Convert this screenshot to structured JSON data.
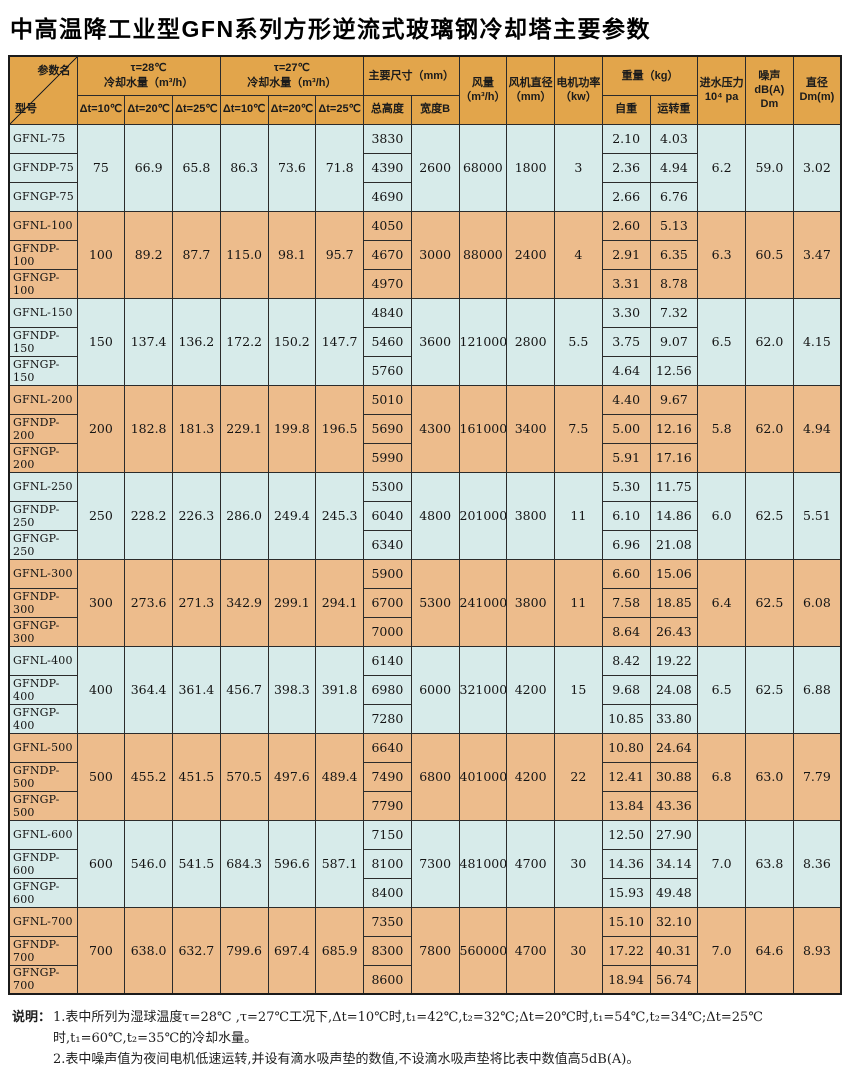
{
  "title": "中高温降工业型GFN系列方形逆流式玻璃钢冷却塔主要参数",
  "colors": {
    "header_bg": "#e2a54b",
    "row_blue": "#d7ebea",
    "row_tan": "#edbc8c",
    "border": "#2b2b2b"
  },
  "table": {
    "header": {
      "corner_top": "参数名",
      "corner_bottom": "型号",
      "cool28_line1": "τ=28℃",
      "cool28_line2": "冷却水量（m³/h）",
      "cool27_line1": "τ=27℃",
      "cool27_line2": "冷却水量（m³/h）",
      "dt_cols": [
        "Δt=10℃",
        "Δt=20℃",
        "Δt=25℃",
        "Δt=10℃",
        "Δt=20℃",
        "Δt=25℃"
      ],
      "dims": "主要尺寸（mm）",
      "height": "总高度",
      "widthB": "宽度B",
      "airflow_line1": "风量",
      "airflow_line2": "（m³/h）",
      "fan_dia_line1": "风机直径",
      "fan_dia_line2": "（mm）",
      "motor_line1": "电机功率",
      "motor_line2": "（kw）",
      "weight": "重量（kg）",
      "self_weight": "自重",
      "run_weight": "运转重",
      "pressure_line1": "进水压力",
      "pressure_line2": "10⁴ pa",
      "noise_line1": "噪声",
      "noise_line2": "dB(A) Dm",
      "dia_line1": "直径",
      "dia_line2": "Dm(m)"
    },
    "groups": [
      {
        "models": [
          "GFNL-75",
          "GFNDP-75",
          "GFNGP-75"
        ],
        "cool_28": [
          "75",
          "66.9",
          "65.8"
        ],
        "cool_27": [
          "86.3",
          "73.6",
          "71.8"
        ],
        "heights": [
          "3830",
          "4390",
          "4690"
        ],
        "width_b": "2600",
        "airflow": "68000",
        "fan_diameter": "1800",
        "motor_power": "3",
        "self_weight": [
          "2.10",
          "2.36",
          "2.66"
        ],
        "run_weight": [
          "4.03",
          "4.94",
          "6.76"
        ],
        "water_pressure": "6.2",
        "noise": "59.0",
        "diameter": "3.02"
      },
      {
        "models": [
          "GFNL-100",
          "GFNDP-100",
          "GFNGP-100"
        ],
        "cool_28": [
          "100",
          "89.2",
          "87.7"
        ],
        "cool_27": [
          "115.0",
          "98.1",
          "95.7"
        ],
        "heights": [
          "4050",
          "4670",
          "4970"
        ],
        "width_b": "3000",
        "airflow": "88000",
        "fan_diameter": "2400",
        "motor_power": "4",
        "self_weight": [
          "2.60",
          "2.91",
          "3.31"
        ],
        "run_weight": [
          "5.13",
          "6.35",
          "8.78"
        ],
        "water_pressure": "6.3",
        "noise": "60.5",
        "diameter": "3.47"
      },
      {
        "models": [
          "GFNL-150",
          "GFNDP-150",
          "GFNGP-150"
        ],
        "cool_28": [
          "150",
          "137.4",
          "136.2"
        ],
        "cool_27": [
          "172.2",
          "150.2",
          "147.7"
        ],
        "heights": [
          "4840",
          "5460",
          "5760"
        ],
        "width_b": "3600",
        "airflow": "121000",
        "fan_diameter": "2800",
        "motor_power": "5.5",
        "self_weight": [
          "3.30",
          "3.75",
          "4.64"
        ],
        "run_weight": [
          "7.32",
          "9.07",
          "12.56"
        ],
        "water_pressure": "6.5",
        "noise": "62.0",
        "diameter": "4.15"
      },
      {
        "models": [
          "GFNL-200",
          "GFNDP-200",
          "GFNGP-200"
        ],
        "cool_28": [
          "200",
          "182.8",
          "181.3"
        ],
        "cool_27": [
          "229.1",
          "199.8",
          "196.5"
        ],
        "heights": [
          "5010",
          "5690",
          "5990"
        ],
        "width_b": "4300",
        "airflow": "161000",
        "fan_diameter": "3400",
        "motor_power": "7.5",
        "self_weight": [
          "4.40",
          "5.00",
          "5.91"
        ],
        "run_weight": [
          "9.67",
          "12.16",
          "17.16"
        ],
        "water_pressure": "5.8",
        "noise": "62.0",
        "diameter": "4.94"
      },
      {
        "models": [
          "GFNL-250",
          "GFNDP-250",
          "GFNGP-250"
        ],
        "cool_28": [
          "250",
          "228.2",
          "226.3"
        ],
        "cool_27": [
          "286.0",
          "249.4",
          "245.3"
        ],
        "heights": [
          "5300",
          "6040",
          "6340"
        ],
        "width_b": "4800",
        "airflow": "201000",
        "fan_diameter": "3800",
        "motor_power": "11",
        "self_weight": [
          "5.30",
          "6.10",
          "6.96"
        ],
        "run_weight": [
          "11.75",
          "14.86",
          "21.08"
        ],
        "water_pressure": "6.0",
        "noise": "62.5",
        "diameter": "5.51"
      },
      {
        "models": [
          "GFNL-300",
          "GFNDP-300",
          "GFNGP-300"
        ],
        "cool_28": [
          "300",
          "273.6",
          "271.3"
        ],
        "cool_27": [
          "342.9",
          "299.1",
          "294.1"
        ],
        "heights": [
          "5900",
          "6700",
          "7000"
        ],
        "width_b": "5300",
        "airflow": "241000",
        "fan_diameter": "3800",
        "motor_power": "11",
        "self_weight": [
          "6.60",
          "7.58",
          "8.64"
        ],
        "run_weight": [
          "15.06",
          "18.85",
          "26.43"
        ],
        "water_pressure": "6.4",
        "noise": "62.5",
        "diameter": "6.08"
      },
      {
        "models": [
          "GFNL-400",
          "GFNDP-400",
          "GFNGP-400"
        ],
        "cool_28": [
          "400",
          "364.4",
          "361.4"
        ],
        "cool_27": [
          "456.7",
          "398.3",
          "391.8"
        ],
        "heights": [
          "6140",
          "6980",
          "7280"
        ],
        "width_b": "6000",
        "airflow": "321000",
        "fan_diameter": "4200",
        "motor_power": "15",
        "self_weight": [
          "8.42",
          "9.68",
          "10.85"
        ],
        "run_weight": [
          "19.22",
          "24.08",
          "33.80"
        ],
        "water_pressure": "6.5",
        "noise": "62.5",
        "diameter": "6.88"
      },
      {
        "models": [
          "GFNL-500",
          "GFNDP-500",
          "GFNGP-500"
        ],
        "cool_28": [
          "500",
          "455.2",
          "451.5"
        ],
        "cool_27": [
          "570.5",
          "497.6",
          "489.4"
        ],
        "heights": [
          "6640",
          "7490",
          "7790"
        ],
        "width_b": "6800",
        "airflow": "401000",
        "fan_diameter": "4200",
        "motor_power": "22",
        "self_weight": [
          "10.80",
          "12.41",
          "13.84"
        ],
        "run_weight": [
          "24.64",
          "30.88",
          "43.36"
        ],
        "water_pressure": "6.8",
        "noise": "63.0",
        "diameter": "7.79"
      },
      {
        "models": [
          "GFNL-600",
          "GFNDP-600",
          "GFNGP-600"
        ],
        "cool_28": [
          "600",
          "546.0",
          "541.5"
        ],
        "cool_27": [
          "684.3",
          "596.6",
          "587.1"
        ],
        "heights": [
          "7150",
          "8100",
          "8400"
        ],
        "width_b": "7300",
        "airflow": "481000",
        "fan_diameter": "4700",
        "motor_power": "30",
        "self_weight": [
          "12.50",
          "14.36",
          "15.93"
        ],
        "run_weight": [
          "27.90",
          "34.14",
          "49.48"
        ],
        "water_pressure": "7.0",
        "noise": "63.8",
        "diameter": "8.36"
      },
      {
        "models": [
          "GFNL-700",
          "GFNDP-700",
          "GFNGP-700"
        ],
        "cool_28": [
          "700",
          "638.0",
          "632.7"
        ],
        "cool_27": [
          "799.6",
          "697.4",
          "685.9"
        ],
        "heights": [
          "7350",
          "8300",
          "8600"
        ],
        "width_b": "7800",
        "airflow": "560000",
        "fan_diameter": "4700",
        "motor_power": "30",
        "self_weight": [
          "15.10",
          "17.22",
          "18.94"
        ],
        "run_weight": [
          "32.10",
          "40.31",
          "56.74"
        ],
        "water_pressure": "7.0",
        "noise": "64.6",
        "diameter": "8.93"
      }
    ]
  },
  "notes": {
    "label": "说明：",
    "line1": "1.表中所列为湿球温度τ=28℃ ,τ=27℃工况下,Δt=10℃时,t₁=42℃,t₂=32℃;Δt=20℃时,t₁=54℃,t₂=34℃;Δt=25℃时,t₁=60℃,t₂=35℃的冷却水量。",
    "line2": "2.表中噪声值为夜间电机低速运转,并设有滴水吸声垫的数值,不设滴水吸声垫将比表中数值高5dB(A)。"
  }
}
